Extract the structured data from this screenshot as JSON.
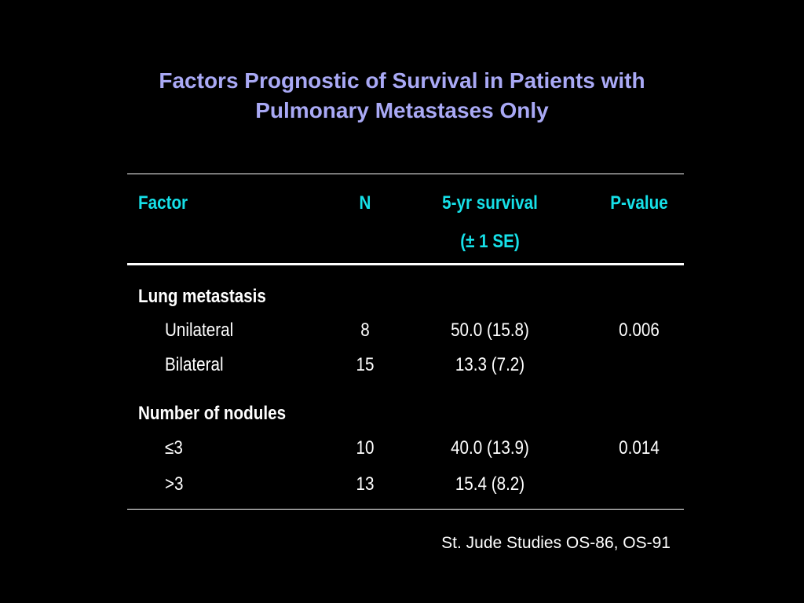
{
  "slide": {
    "title_line1": "Factors Prognostic of Survival in Patients with",
    "title_line2": "Pulmonary Metastases Only",
    "footer": "St. Jude Studies OS-86, OS-91"
  },
  "table": {
    "headers": {
      "factor": "Factor",
      "n": "N",
      "survival_line1": "5-yr survival",
      "survival_line2": "(± 1 SE)",
      "pvalue": "P-value"
    },
    "groups": [
      {
        "label": "Lung metastasis",
        "rows": [
          {
            "factor": "Unilateral",
            "n": "8",
            "survival": "50.0 (15.8)",
            "pvalue": "0.006"
          },
          {
            "factor": "Bilateral",
            "n": "15",
            "survival": "13.3 (7.2)",
            "pvalue": ""
          }
        ]
      },
      {
        "label": "Number of nodules",
        "rows": [
          {
            "factor": "≤3",
            "n": "10",
            "survival": "40.0 (13.9)",
            "pvalue": "0.014"
          },
          {
            "factor": ">3",
            "n": "13",
            "survival": "15.4 (8.2)",
            "pvalue": ""
          }
        ]
      }
    ]
  },
  "colors": {
    "title": "#a9a9f5",
    "header": "#16e0e8",
    "text": "#ffffff",
    "background": "#000000"
  }
}
